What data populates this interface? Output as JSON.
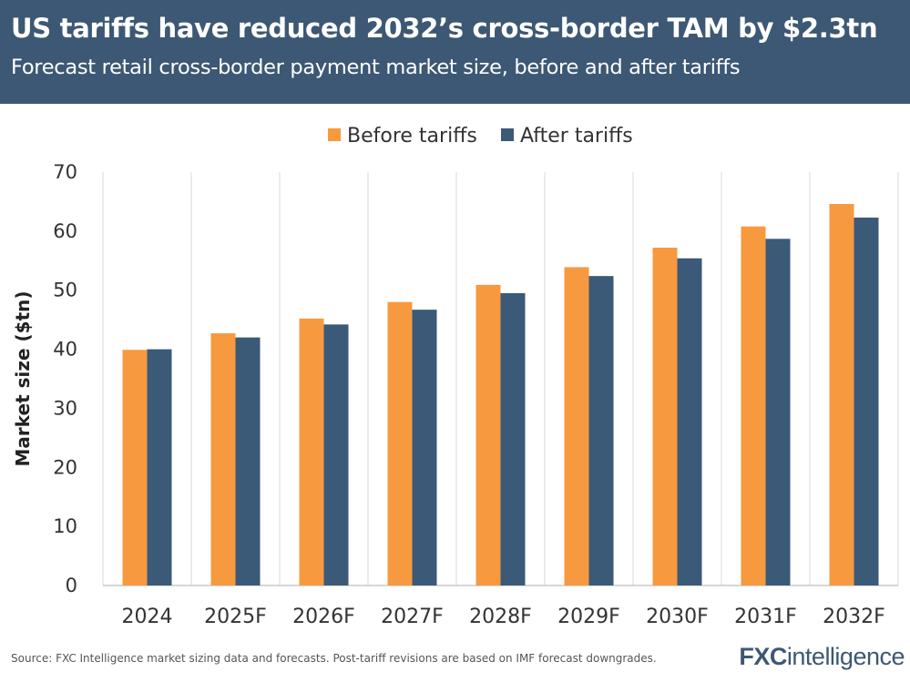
{
  "header": {
    "title": "US tariffs have reduced 2032’s cross-border TAM by $2.3tn",
    "subtitle": "Forecast retail cross-border payment market size, before and after tariffs"
  },
  "footer": {
    "source": "Source: FXC Intelligence market sizing data and forecasts. Post-tariff revisions are based on IMF forecast downgrades.",
    "brand_fxc": "FXC",
    "brand_rest": "intelligence"
  },
  "colors": {
    "header_bg": "#3c5874",
    "before": "#f7993f",
    "after": "#3b5a78",
    "grid": "#d9d9d9"
  },
  "chart_data": {
    "type": "bar",
    "title": "Forecast retail cross-border payment market size, before and after tariffs",
    "xlabel": "",
    "ylabel": "Market size ($tn)",
    "ylim": [
      0,
      70
    ],
    "yticks": [
      0,
      10,
      20,
      30,
      40,
      50,
      60,
      70
    ],
    "grid": "vertical",
    "legend_position": "top-center",
    "categories": [
      "2024",
      "2025F",
      "2026F",
      "2027F",
      "2028F",
      "2029F",
      "2030F",
      "2031F",
      "2032F"
    ],
    "series": [
      {
        "name": "Before tariffs",
        "color": "#f7993f",
        "values": [
          39.9,
          42.7,
          45.2,
          48.0,
          50.9,
          53.9,
          57.2,
          60.8,
          64.6
        ]
      },
      {
        "name": "After tariffs",
        "color": "#3b5a78",
        "values": [
          40.0,
          42.0,
          44.2,
          46.7,
          49.5,
          52.4,
          55.4,
          58.7,
          62.3
        ]
      }
    ]
  }
}
